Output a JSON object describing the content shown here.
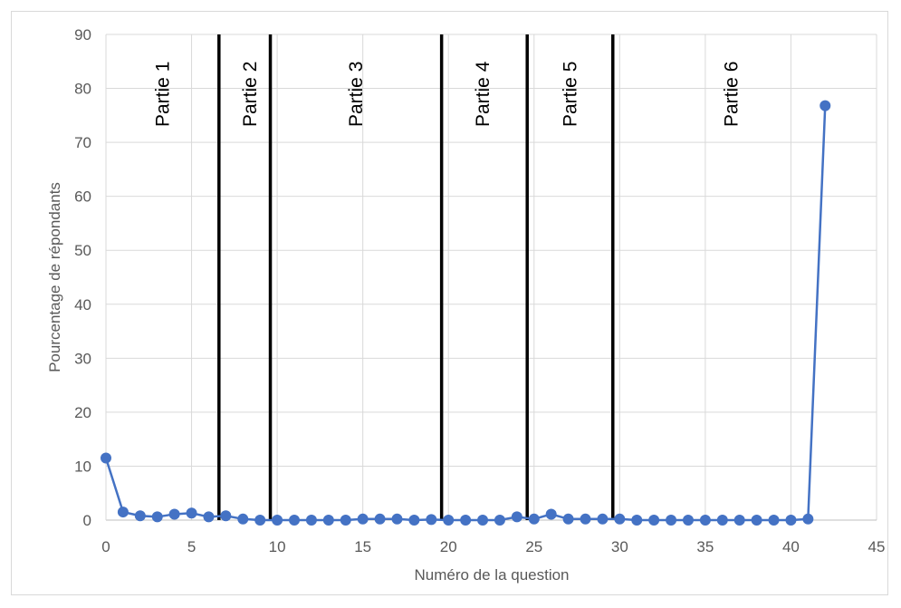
{
  "chart_data": {
    "type": "line",
    "xlabel": "Numéro  de la question",
    "ylabel": "Pourcentage de répondants",
    "xlim": [
      0,
      45
    ],
    "ylim": [
      0,
      90
    ],
    "xticks": [
      0,
      5,
      10,
      15,
      20,
      25,
      30,
      35,
      40,
      45
    ],
    "yticks": [
      0,
      10,
      20,
      30,
      40,
      50,
      60,
      70,
      80,
      90
    ],
    "grid": true,
    "series_color": "#4472c4",
    "x": [
      0,
      1,
      2,
      3,
      4,
      5,
      6,
      7,
      8,
      9,
      10,
      11,
      12,
      13,
      14,
      15,
      16,
      17,
      18,
      19,
      20,
      21,
      22,
      23,
      24,
      25,
      26,
      27,
      28,
      29,
      30,
      31,
      32,
      33,
      34,
      35,
      36,
      37,
      38,
      39,
      40,
      41,
      42
    ],
    "values": [
      11.5,
      1.5,
      0.8,
      0.6,
      1.1,
      1.3,
      0.6,
      0.8,
      0.2,
      0,
      0,
      0,
      0,
      0,
      0,
      0.2,
      0.2,
      0.2,
      0,
      0.1,
      0,
      0,
      0,
      0,
      0.6,
      0.2,
      1.1,
      0.2,
      0.2,
      0.2,
      0.2,
      0,
      0,
      0,
      0,
      0,
      0,
      0,
      0,
      0,
      0,
      0.2,
      76.8
    ],
    "separators": [
      6.6,
      9.6,
      19.6,
      24.6,
      29.6
    ],
    "sections": [
      {
        "label": "Partie 1",
        "x": 3.3
      },
      {
        "label": "Partie 2",
        "x": 8.4
      },
      {
        "label": "Partie 3",
        "x": 14.6
      },
      {
        "label": "Partie 4",
        "x": 22.0
      },
      {
        "label": "Partie 5",
        "x": 27.1
      },
      {
        "label": "Partie 6",
        "x": 36.5
      }
    ]
  }
}
